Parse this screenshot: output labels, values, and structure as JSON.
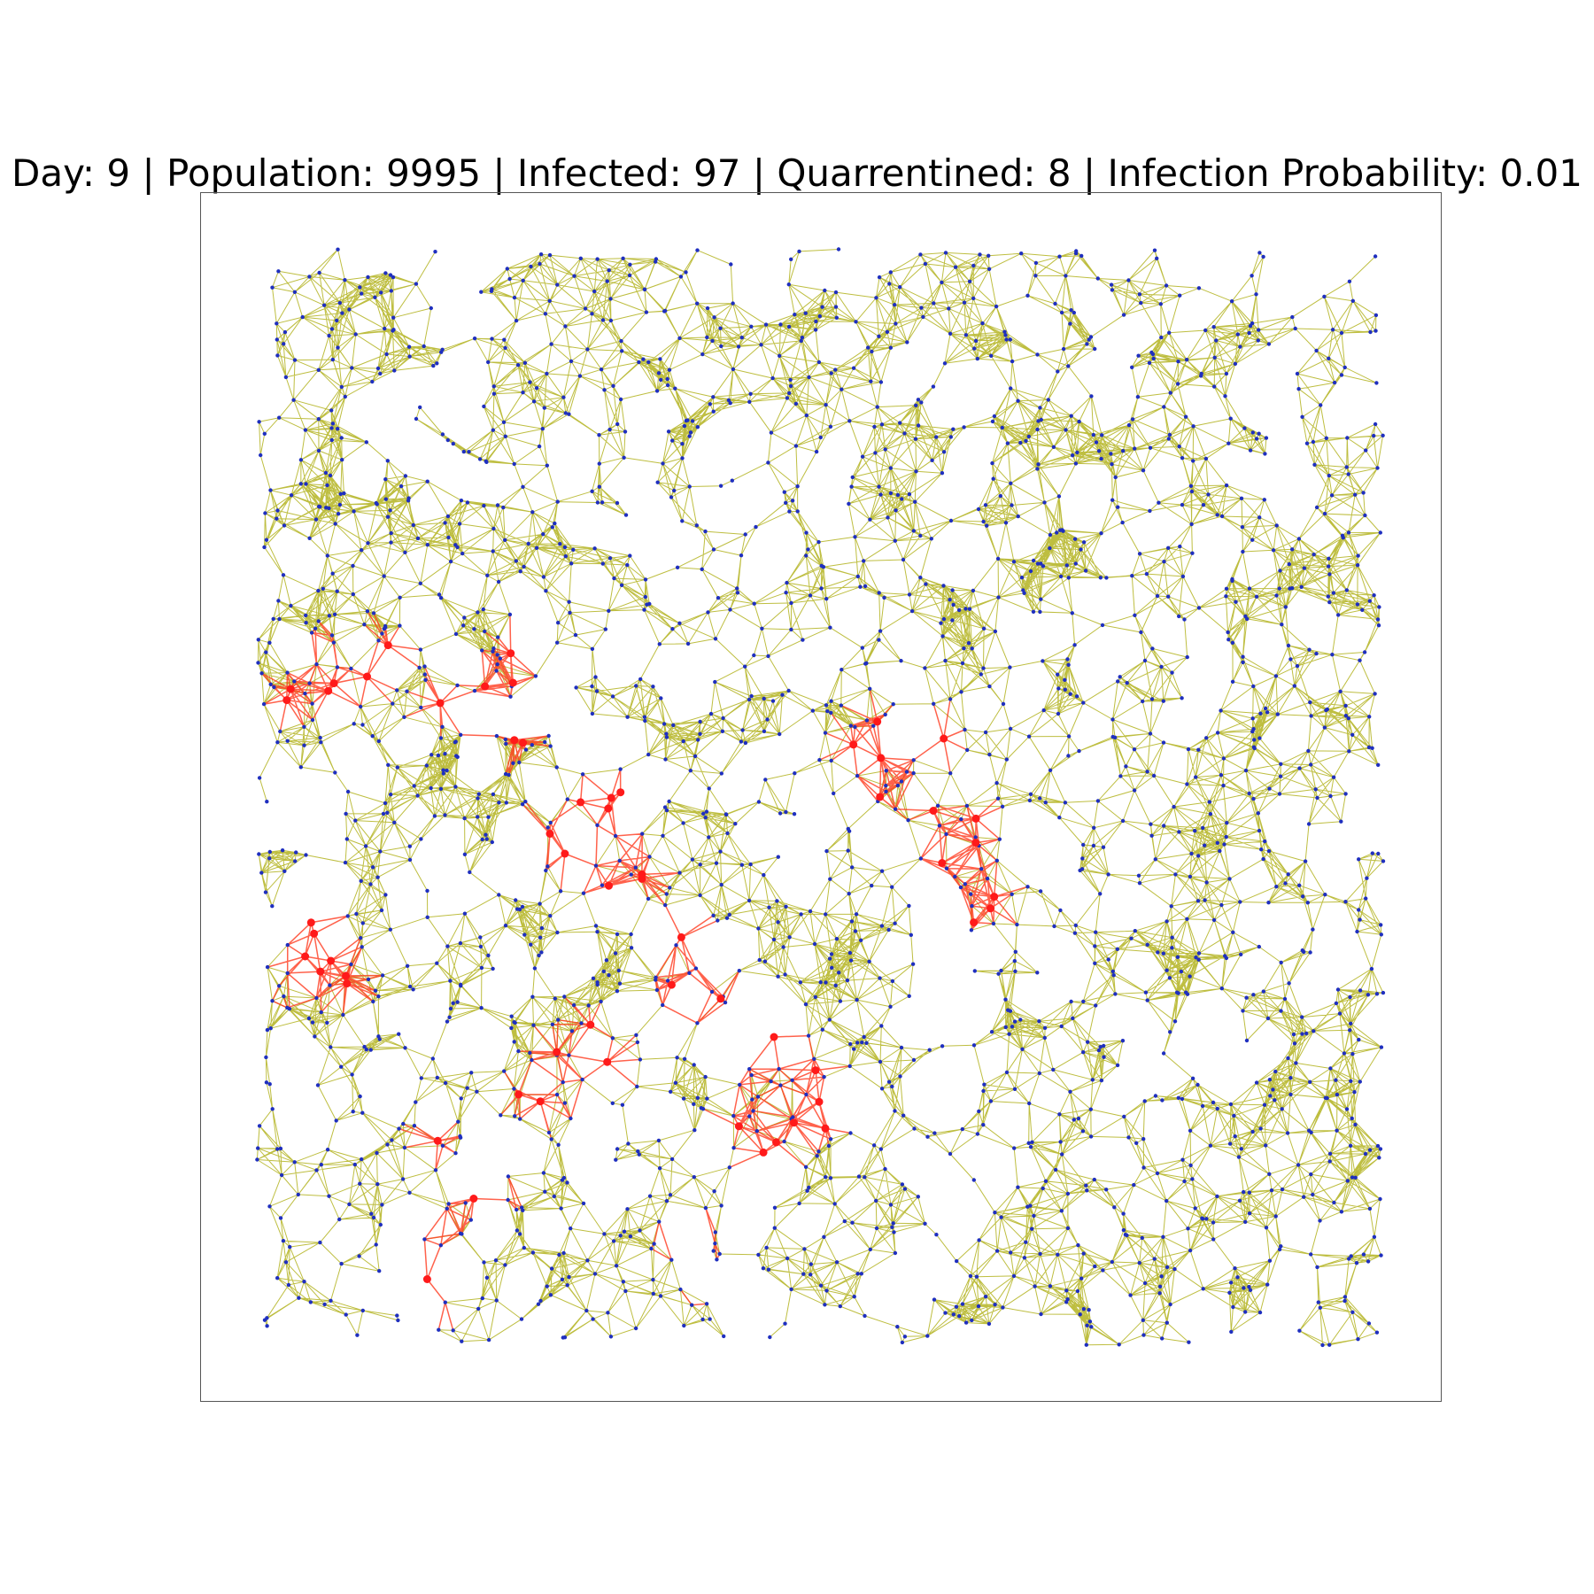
{
  "title": {
    "text": "Day: 9 | Population: 9995 | Infected: 97 | Quarrentined: 8 | Infection Probability: 0.01"
  },
  "colors": {
    "healthy_node": "#1f2fbf",
    "infected_node": "#ff1a1a",
    "healthy_edge": "#a8a800",
    "infected_edge": "#ff3b1f",
    "frame": "#555555"
  },
  "legend": null
}
